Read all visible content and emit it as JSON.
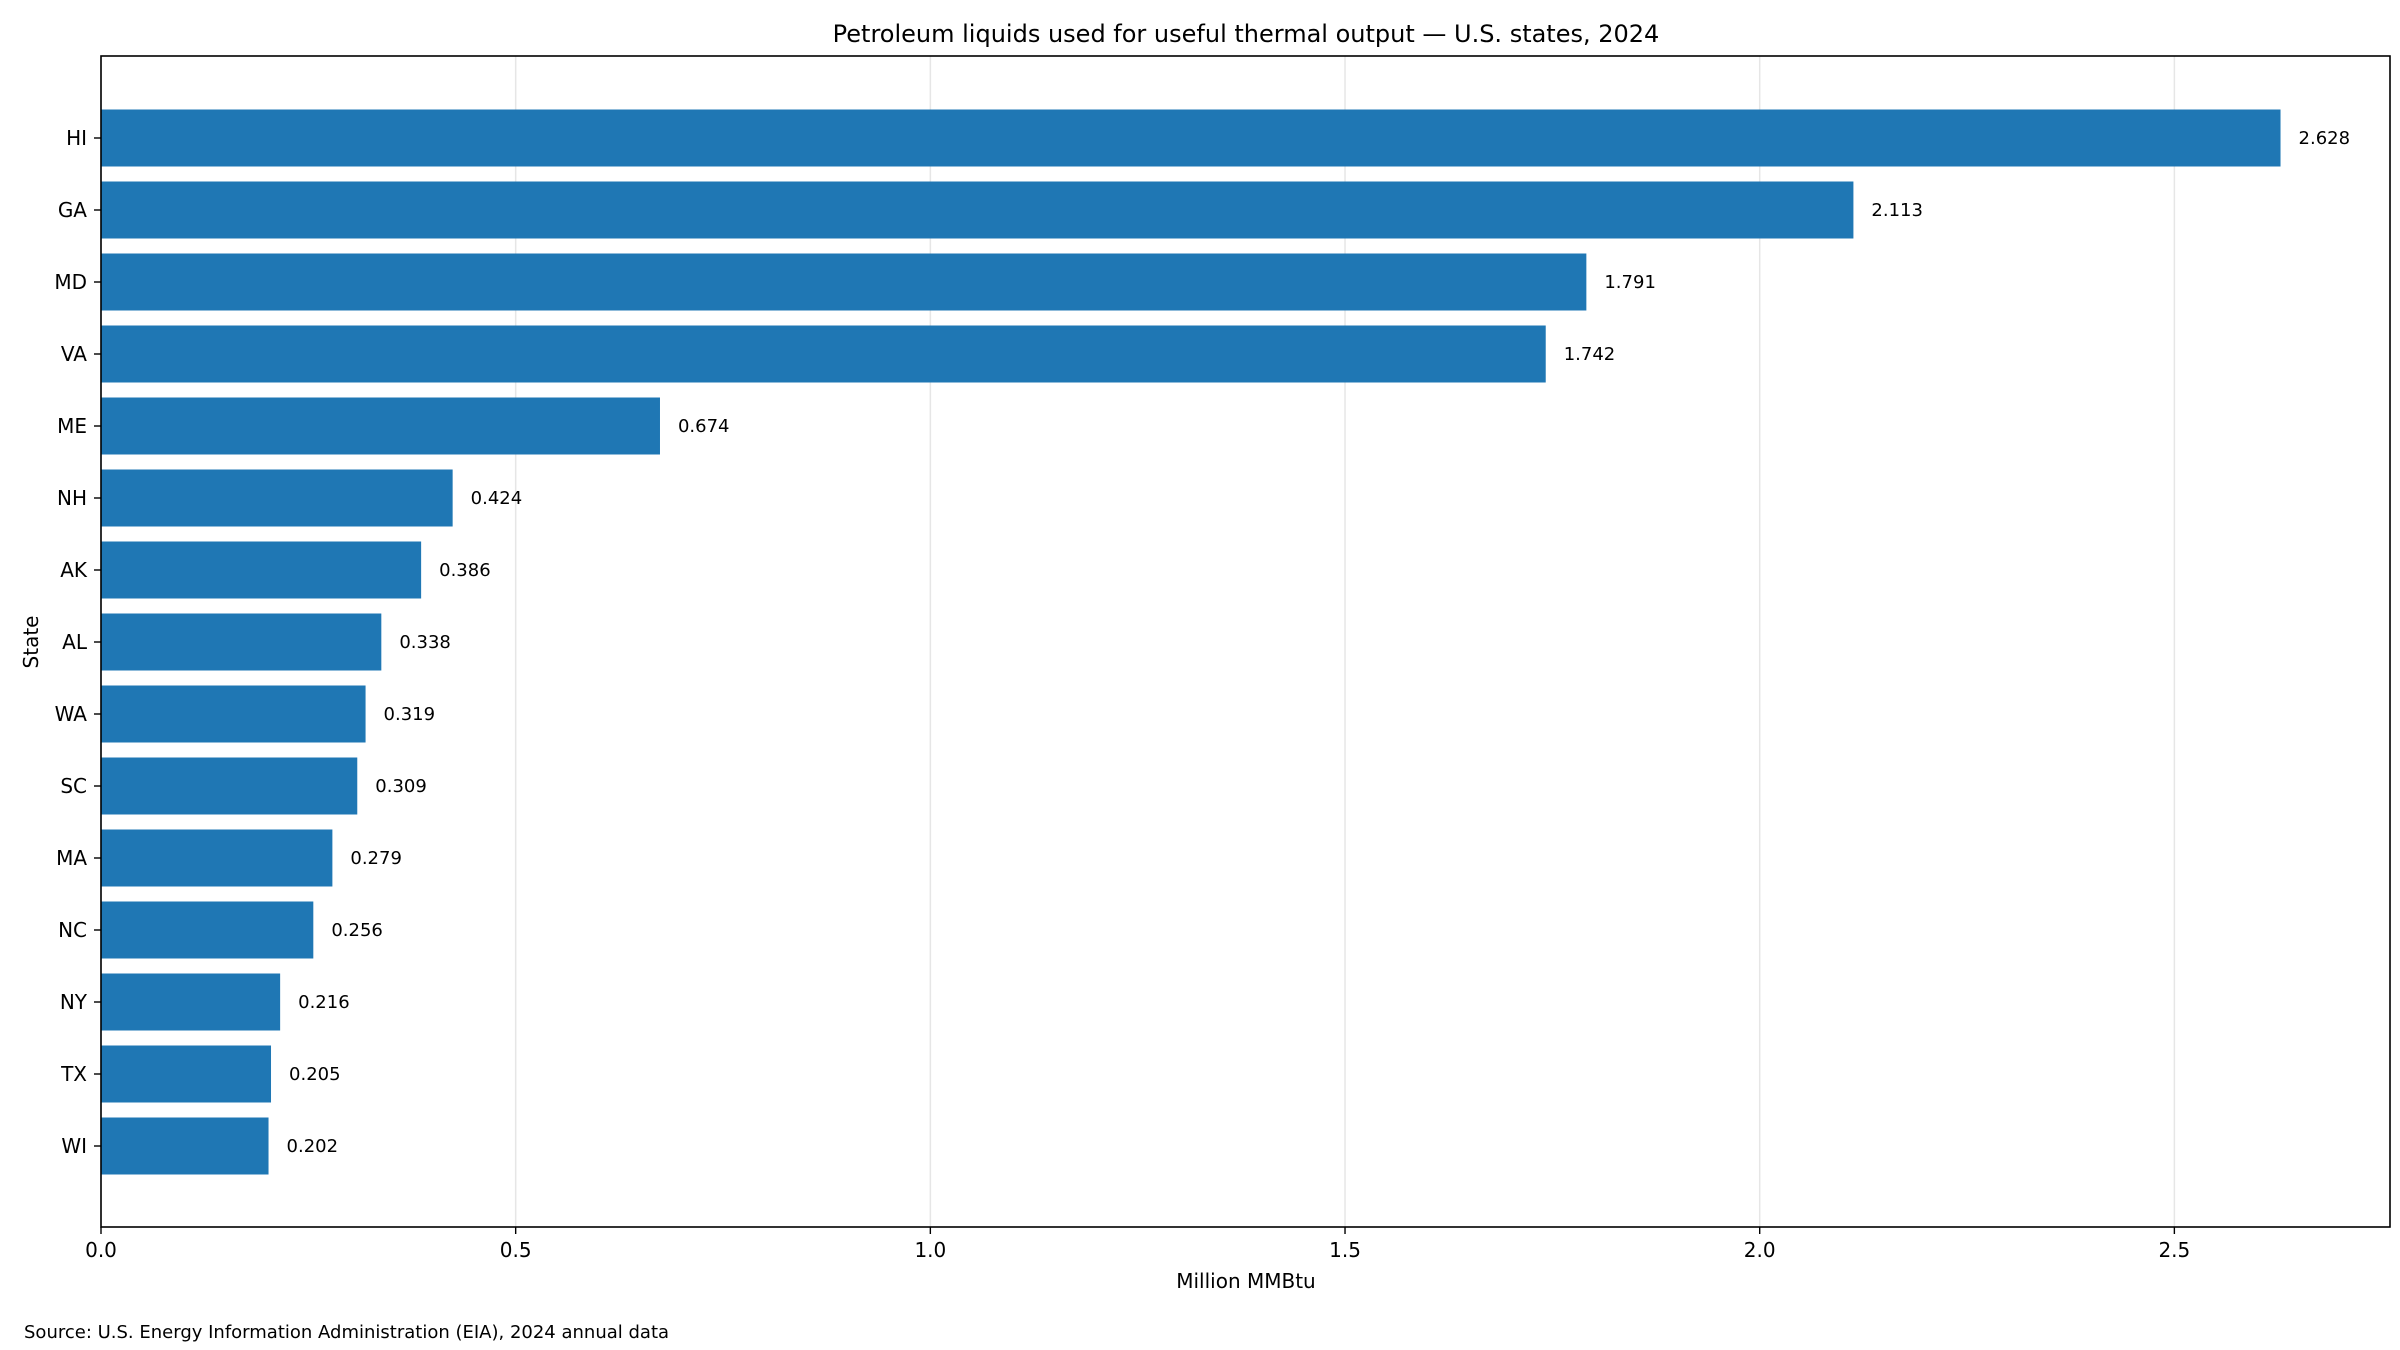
{
  "chart_data": {
    "type": "bar",
    "orientation": "horizontal",
    "title": "Petroleum liquids used for useful thermal output — U.S. states, 2024",
    "xlabel": "Million MMBtu",
    "ylabel": "State",
    "xlim": [
      0,
      2.76
    ],
    "xticks": [
      0.0,
      0.5,
      1.0,
      1.5,
      2.0,
      2.5
    ],
    "xtick_labels": [
      "0.0",
      "0.5",
      "1.0",
      "1.5",
      "2.0",
      "2.5"
    ],
    "grid": "x",
    "bar_color": "#1f77b4",
    "categories": [
      "HI",
      "GA",
      "MD",
      "VA",
      "ME",
      "NH",
      "AK",
      "AL",
      "WA",
      "SC",
      "MA",
      "NC",
      "NY",
      "TX",
      "WI"
    ],
    "values": [
      2.628,
      2.113,
      1.791,
      1.742,
      0.674,
      0.424,
      0.386,
      0.338,
      0.319,
      0.309,
      0.279,
      0.256,
      0.216,
      0.205,
      0.202
    ],
    "value_labels": [
      "2.628",
      "2.113",
      "1.791",
      "1.742",
      "0.674",
      "0.424",
      "0.386",
      "0.338",
      "0.319",
      "0.309",
      "0.279",
      "0.256",
      "0.216",
      "0.205",
      "0.202"
    ]
  },
  "footer": {
    "source": "Source: U.S. Energy Information Administration (EIA), 2024 annual data"
  }
}
